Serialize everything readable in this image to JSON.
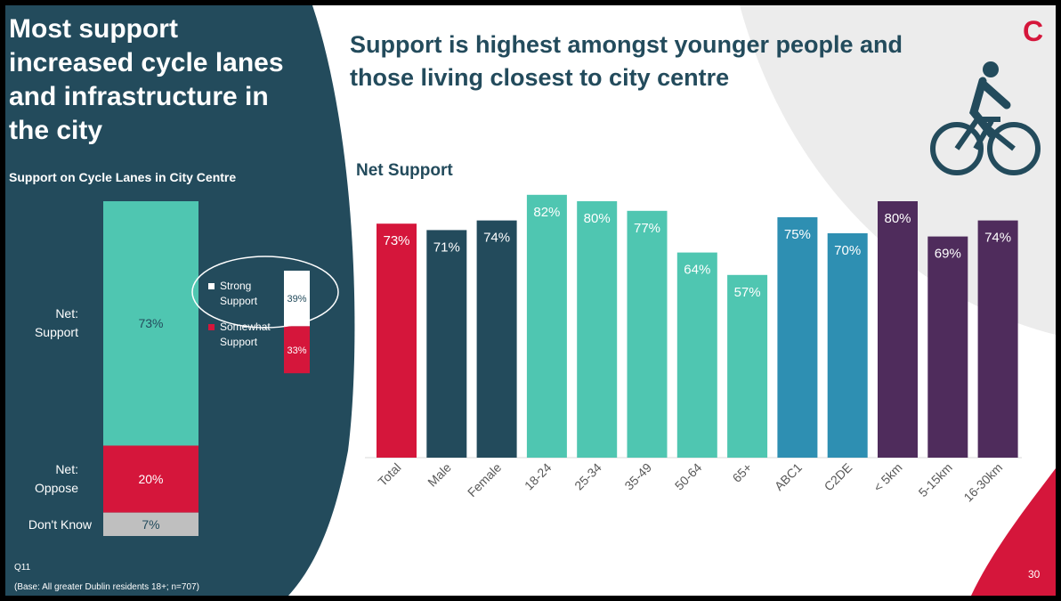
{
  "left_panel": {
    "title": "Most support increased cycle lanes and infrastructure in the city",
    "subtitle": "Support on Cycle Lanes in City Centre",
    "question": "Q11",
    "base": "(Base: All greater Dublin residents 18+; n=707)"
  },
  "header": {
    "title": "Support is highest amongst younger people and those living closest to city centre",
    "chart_label": "Net Support"
  },
  "logo_letter": "C",
  "page_number": "30",
  "colors": {
    "navy": "#234b5c",
    "crimson": "#d5163b",
    "teal": "#4fc6b1",
    "blue": "#2e8fb2",
    "purple": "#4f2c5c",
    "gray_bg": "#ececec",
    "dontknow_gray": "#bfbfbf"
  },
  "chart_data": [
    {
      "type": "bar",
      "stacked": true,
      "title": "Support on Cycle Lanes in City Centre",
      "categories": [
        "Net: Support",
        "Net: Oppose",
        "Don't Know"
      ],
      "values": [
        73,
        20,
        7
      ],
      "labels": [
        "73%",
        "20%",
        "7%"
      ],
      "breakdown": {
        "name": "Net: Support",
        "categories": [
          "Strong Support",
          "Somewhat Support"
        ],
        "values": [
          39,
          33
        ],
        "labels": [
          "39%",
          "33%"
        ]
      }
    },
    {
      "type": "bar",
      "title": "Net Support",
      "categories": [
        "Total",
        "Male",
        "Female",
        "18-24",
        "25-34",
        "35-49",
        "50-64",
        "65+",
        "ABC1",
        "C2DE",
        "< 5km",
        "5-15km",
        "16-30km"
      ],
      "values": [
        73,
        71,
        74,
        82,
        80,
        77,
        64,
        57,
        75,
        70,
        80,
        69,
        74
      ],
      "labels": [
        "73%",
        "71%",
        "74%",
        "82%",
        "80%",
        "77%",
        "64%",
        "57%",
        "75%",
        "70%",
        "80%",
        "69%",
        "74%"
      ],
      "colors": [
        "#d5163b",
        "#234b5c",
        "#234b5c",
        "#4fc6b1",
        "#4fc6b1",
        "#4fc6b1",
        "#4fc6b1",
        "#4fc6b1",
        "#2e8fb2",
        "#2e8fb2",
        "#4f2c5c",
        "#4f2c5c",
        "#4f2c5c"
      ],
      "ylim": [
        0,
        100
      ]
    }
  ]
}
